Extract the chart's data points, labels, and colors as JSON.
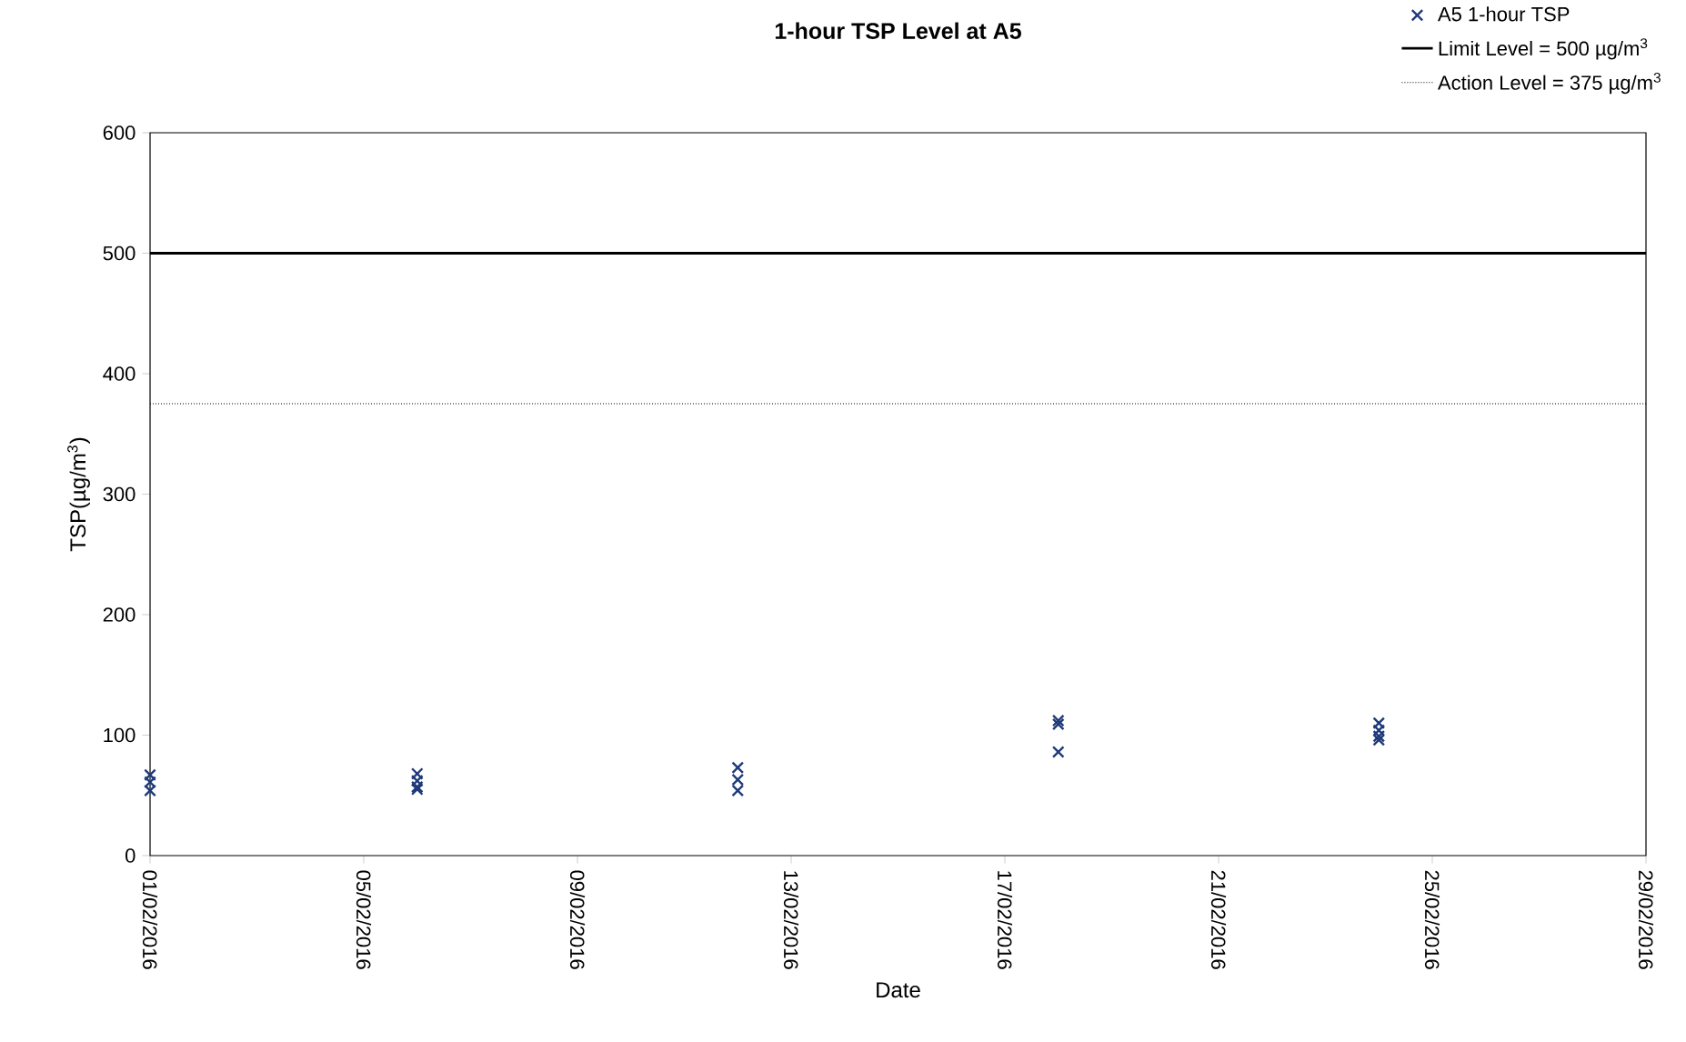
{
  "chart_data": {
    "type": "scatter",
    "title": "1-hour TSP Level at A5",
    "xlabel": "Date",
    "ylabel": "TSP(µg/m$^{3}$)",
    "series": [
      {
        "name": "A5 1-hour TSP",
        "color": "#1f3a7a",
        "x": [
          "2016-02-01",
          "2016-02-01",
          "2016-02-01",
          "2016-02-06",
          "2016-02-06",
          "2016-02-06",
          "2016-02-06",
          "2016-02-12",
          "2016-02-12",
          "2016-02-12",
          "2016-02-18",
          "2016-02-18",
          "2016-02-18",
          "2016-02-24",
          "2016-02-24",
          "2016-02-24",
          "2016-02-24"
        ],
        "values": [
          67,
          61,
          54,
          68,
          62,
          57,
          55,
          73,
          63,
          54,
          112,
          109,
          86,
          110,
          104,
          99,
          96
        ]
      }
    ],
    "marker": "cross",
    "ref_lines": [
      {
        "axis": "y",
        "value": 500,
        "label": "Limit Level = 500   µg/m$^{3}$",
        "color": "#000000",
        "line_style": "solid"
      },
      {
        "axis": "y",
        "value": 375,
        "label": "Action Level = 375    µg/m$^{3}$",
        "color": "#000000",
        "line_style": "dotted"
      }
    ],
    "xlim": [
      "2016-02-01",
      "2016-02-29"
    ],
    "xticks": [
      {
        "value": "2016-02-01",
        "label": "01/02/2016"
      },
      {
        "value": "2016-02-05",
        "label": "05/02/2016"
      },
      {
        "value": "2016-02-09",
        "label": "09/02/2016"
      },
      {
        "value": "2016-02-13",
        "label": "13/02/2016"
      },
      {
        "value": "2016-02-17",
        "label": "17/02/2016"
      },
      {
        "value": "2016-02-21",
        "label": "21/02/2016"
      },
      {
        "value": "2016-02-25",
        "label": "25/02/2016"
      },
      {
        "value": "2016-02-29",
        "label": "29/02/2016"
      }
    ],
    "ylim": [
      0,
      600
    ],
    "yticks": [
      0,
      100,
      200,
      300,
      400,
      500,
      600
    ],
    "grid": false,
    "legend": "top right"
  }
}
